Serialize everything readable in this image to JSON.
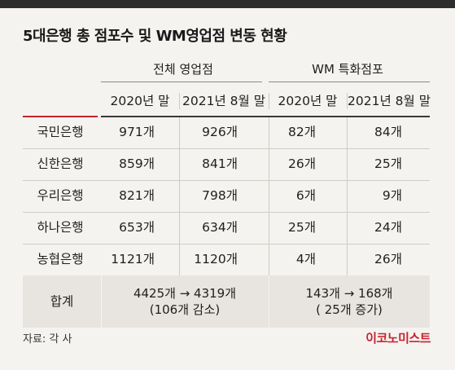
{
  "title": "5대은행 총 점포수 및 WM영업점 변동 현황",
  "groups": {
    "all_branches": "전체 영업점",
    "wm_branches": "WM 특화점포"
  },
  "columns": [
    "2020년 말",
    "2021년 8월 말",
    "2020년 말",
    "2021년 8월 말"
  ],
  "rows": [
    {
      "bank": "국민은행",
      "v": [
        "971개",
        "926개",
        "82개",
        "84개"
      ]
    },
    {
      "bank": "신한은행",
      "v": [
        "859개",
        "841개",
        "26개",
        "25개"
      ]
    },
    {
      "bank": "우리은행",
      "v": [
        "821개",
        "798개",
        "6개",
        "9개"
      ]
    },
    {
      "bank": "하나은행",
      "v": [
        "653개",
        "634개",
        "25개",
        "24개"
      ]
    },
    {
      "bank": "농협은행",
      "v": [
        "1121개",
        "1120개",
        "4개",
        "26개"
      ]
    }
  ],
  "total": {
    "label": "합계",
    "all_line1": "4425개 → 4319개",
    "all_line2": "(106개 감소)",
    "wm_line1": "143개 → 168개",
    "wm_line2": "( 25개 증가)"
  },
  "source": "자료: 각 사",
  "brand": "이코노미스트",
  "colors": {
    "accent_red": "#c8222e",
    "top_bar": "#2d2d2d",
    "background": "#f5f3f0",
    "total_row": "#e8e4df"
  }
}
